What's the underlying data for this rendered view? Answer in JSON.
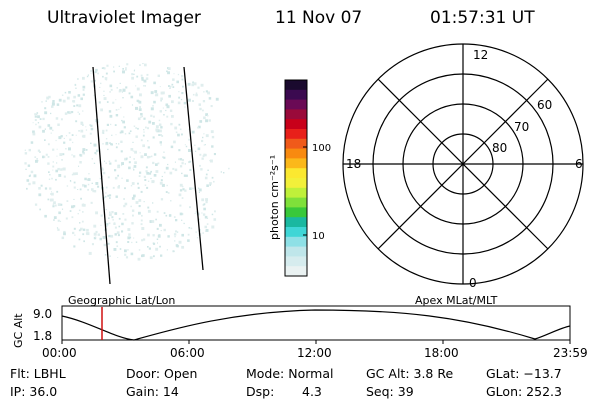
{
  "header": {
    "instrument": "Ultraviolet Imager",
    "date": "11 Nov 07",
    "time": "01:57:31 UT"
  },
  "colorbar": {
    "label": "photon cm⁻²s⁻¹",
    "ticks": [
      "100",
      "10"
    ],
    "colors": [
      "#1a0a2e",
      "#3b0a50",
      "#6a0a55",
      "#9a0a3a",
      "#c8001a",
      "#e8201a",
      "#f05a1a",
      "#f88a10",
      "#fbb81a",
      "#fbe830",
      "#f2f03a",
      "#bff03a",
      "#7fe03a",
      "#39c83a",
      "#1ab8a0",
      "#3fd6d6",
      "#8ee0e6",
      "#bfe6ea",
      "#d6ecee",
      "#eaf2f2"
    ]
  },
  "polar": {
    "mlt_labels": {
      "top": "12",
      "bottom": "0",
      "left": "18",
      "right": "6"
    },
    "lat_labels": [
      "60",
      "70",
      "80"
    ]
  },
  "timeline": {
    "y_axis_label": "GC Alt",
    "y_ticks": [
      "9.0",
      "1.8"
    ],
    "left_caption": "Geographic Lat/Lon",
    "right_caption": "Apex MLat/MLT",
    "x_ticks": [
      "00:00",
      "06:00",
      "12:00",
      "18:00",
      "23:59"
    ],
    "cursor_color": "#d01010"
  },
  "info": {
    "row1": {
      "flt": "Flt: LBHL",
      "door": "Door: Open",
      "mode": "Mode: Normal",
      "gcalt": "GC Alt: 3.8 Re",
      "glat": "GLat: −13.7"
    },
    "row2": {
      "ip": "IP: 36.0",
      "gain": "Gain: 14",
      "dsp_label": "Dsp:",
      "dsp_value": "4.3",
      "seq": "Seq: 39",
      "glon": "GLon: 252.3"
    }
  }
}
